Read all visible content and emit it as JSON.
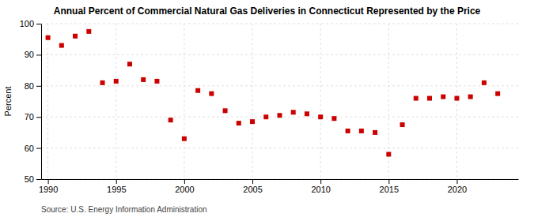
{
  "chart_data": {
    "type": "scatter",
    "title": "Annual Percent of Commercial Natural Gas Deliveries in Connecticut Represented by the Price",
    "ylabel": "Percent",
    "source": "Source: U.S. Energy Information Administration",
    "x": [
      1990,
      1991,
      1992,
      1993,
      1994,
      1995,
      1996,
      1997,
      1998,
      1999,
      2000,
      2001,
      2002,
      2003,
      2004,
      2005,
      2006,
      2007,
      2008,
      2009,
      2010,
      2011,
      2012,
      2013,
      2014,
      2015,
      2016,
      2017,
      2018,
      2019,
      2020,
      2021,
      2022,
      2023
    ],
    "values": [
      95.5,
      93.0,
      96.0,
      97.5,
      81.0,
      81.5,
      87.0,
      82.0,
      81.5,
      69.0,
      63.0,
      78.5,
      77.5,
      72.0,
      68.0,
      68.5,
      70.0,
      70.5,
      71.5,
      71.0,
      70.0,
      69.5,
      65.5,
      65.5,
      65.0,
      58.0,
      67.5,
      76.0,
      76.0,
      76.5,
      76.0,
      76.5,
      81.0,
      77.5
    ],
    "color": "#cc0000",
    "marker": "square",
    "xlim": [
      1989.5,
      2024.5
    ],
    "ylim": [
      50,
      100
    ],
    "xticks": [
      1990,
      1995,
      2000,
      2005,
      2010,
      2015,
      2020
    ],
    "yticks": [
      50,
      60,
      70,
      80,
      90,
      100
    ],
    "grid": true
  }
}
